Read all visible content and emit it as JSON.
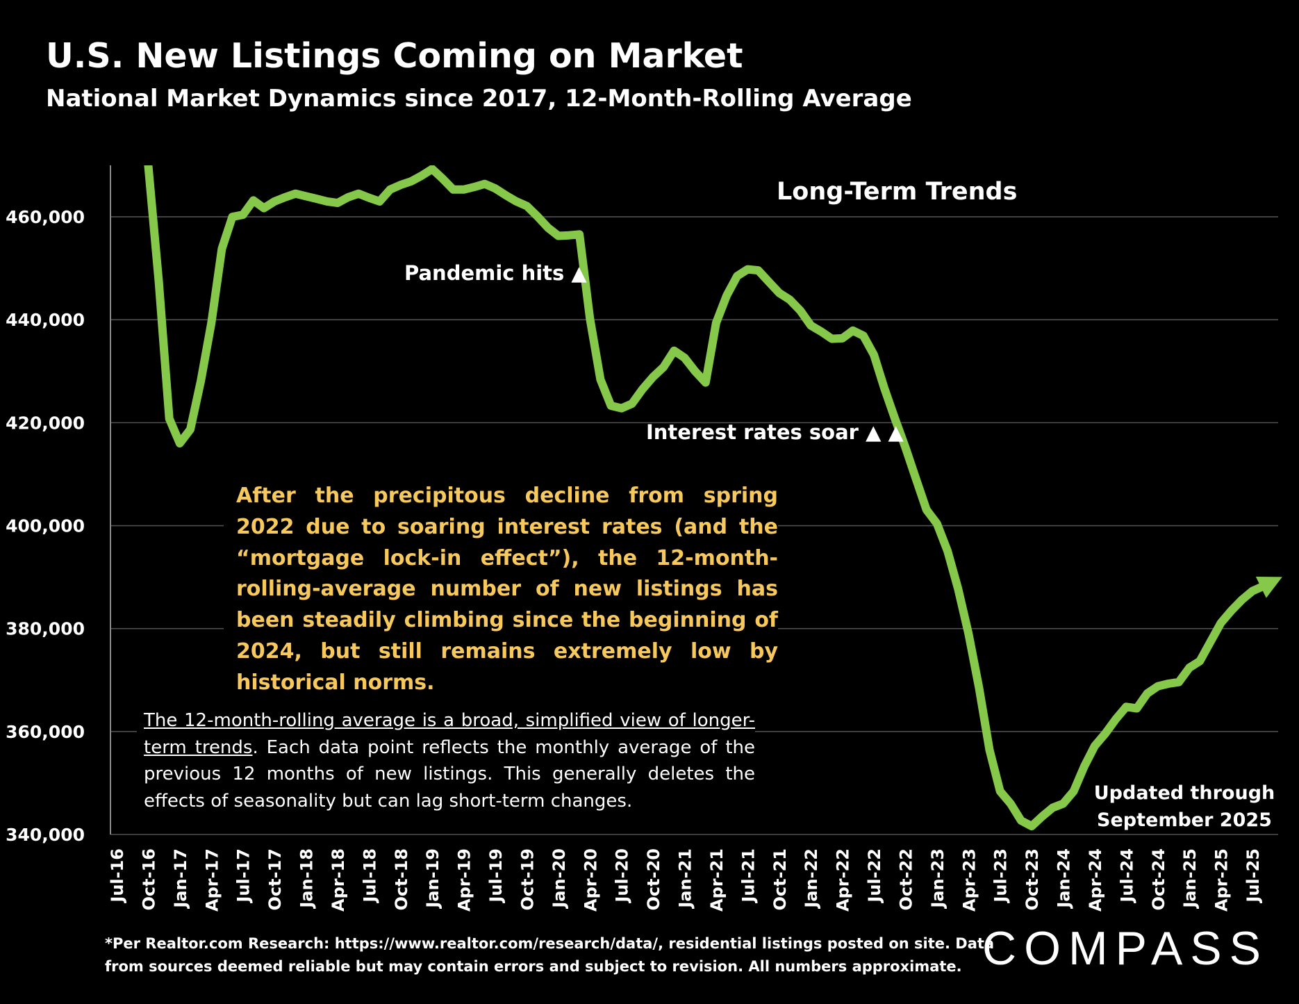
{
  "header": {
    "title": "U.S. New Listings Coming on Market",
    "subtitle": "National Market Dynamics since 2017, 12-Month-Rolling Average"
  },
  "annotations": {
    "long_term": "Long-Term Trends",
    "pandemic": "Pandemic hits ▲",
    "rates": "Interest rates soar ▲ ▲",
    "paragraph": "After the precipitous decline from spring 2022 due to soaring interest rates (and the “mortgage lock-in effect”), the 12-month-rolling-average number of new listings has been steadily climbing since the beginning of 2024, but still remains extremely low by historical norms.",
    "note_underlined": "The 12-month-rolling average is a broad, simplified view of longer-term trends",
    "note_rest": ". Each data point reflects the monthly average of the previous 12 months of new listings. This generally deletes the effects of seasonality but can lag short-term changes.",
    "updated_line1": "Updated through",
    "updated_line2": "September 2025"
  },
  "footer": {
    "line1": "*Per Realtor.com Research:  https://www.realtor.com/research/data/, residential listings posted on site. Data",
    "line2": "from sources deemed reliable but may contain errors and subject to revision. All numbers approximate.",
    "logo": "COMPASS"
  },
  "colors": {
    "line": "#86c94a",
    "paragraph": "#f7c95c",
    "background": "#000000",
    "grid": "#505050"
  },
  "chart_data": {
    "type": "line",
    "title": "U.S. New Listings Coming on Market",
    "ylim": [
      340000,
      470000
    ],
    "grid": true,
    "y_ticks": [
      340000,
      360000,
      380000,
      400000,
      420000,
      440000,
      460000
    ],
    "y_tick_labels": [
      "340,000",
      "360,000",
      "380,000",
      "400,000",
      "420,000",
      "440,000",
      "460,000"
    ],
    "x_tick_labels": [
      "Jul-16",
      "Oct-16",
      "Jan-17",
      "Apr-17",
      "Jul-17",
      "Oct-17",
      "Jan-18",
      "Apr-18",
      "Jul-18",
      "Oct-18",
      "Jan-19",
      "Apr-19",
      "Jul-19",
      "Oct-19",
      "Jan-20",
      "Apr-20",
      "Jul-20",
      "Oct-20",
      "Jan-21",
      "Apr-21",
      "Jul-21",
      "Oct-21",
      "Jan-22",
      "Apr-22",
      "Jul-22",
      "Oct-22",
      "Jan-23",
      "Apr-23",
      "Jul-23",
      "Oct-23",
      "Jan-24",
      "Apr-24",
      "Jul-24",
      "Oct-24",
      "Jan-25",
      "Apr-25",
      "Jul-25"
    ],
    "x": [
      "Oct-16",
      "Nov-16",
      "Dec-16",
      "Jan-17",
      "Feb-17",
      "Mar-17",
      "Apr-17",
      "May-17",
      "Jun-17",
      "Jul-17",
      "Aug-17",
      "Sep-17",
      "Oct-17",
      "Nov-17",
      "Dec-17",
      "Jan-18",
      "Feb-18",
      "Mar-18",
      "Apr-18",
      "May-18",
      "Jun-18",
      "Jul-18",
      "Aug-18",
      "Sep-18",
      "Oct-18",
      "Nov-18",
      "Dec-18",
      "Jan-19",
      "Feb-19",
      "Mar-19",
      "Apr-19",
      "May-19",
      "Jun-19",
      "Jul-19",
      "Aug-19",
      "Sep-19",
      "Oct-19",
      "Nov-19",
      "Dec-19",
      "Jan-20",
      "Feb-20",
      "Mar-20",
      "Apr-20",
      "May-20",
      "Jun-20",
      "Jul-20",
      "Aug-20",
      "Sep-20",
      "Oct-20",
      "Nov-20",
      "Dec-20",
      "Jan-21",
      "Feb-21",
      "Mar-21",
      "Apr-21",
      "May-21",
      "Jun-21",
      "Jul-21",
      "Aug-21",
      "Sep-21",
      "Oct-21",
      "Nov-21",
      "Dec-21",
      "Jan-22",
      "Feb-22",
      "Mar-22",
      "Apr-22",
      "May-22",
      "Jun-22",
      "Jul-22",
      "Aug-22",
      "Sep-22",
      "Oct-22",
      "Nov-22",
      "Dec-22",
      "Jan-23",
      "Feb-23",
      "Mar-23",
      "Apr-23",
      "May-23",
      "Jun-23",
      "Jul-23",
      "Aug-23",
      "Sep-23",
      "Oct-23",
      "Nov-23",
      "Dec-23",
      "Jan-24",
      "Feb-24",
      "Mar-24",
      "Apr-24",
      "May-24",
      "Jun-24",
      "Jul-24",
      "Aug-24",
      "Sep-24",
      "Oct-24",
      "Nov-24",
      "Dec-24",
      "Jan-25",
      "Feb-25",
      "Mar-25",
      "Apr-25",
      "May-25",
      "Jun-25",
      "Jul-25",
      "Aug-25",
      "Sep-25"
    ],
    "values": [
      470000,
      447400,
      420800,
      416000,
      418700,
      428100,
      439400,
      453800,
      460000,
      460400,
      463200,
      461700,
      463000,
      463800,
      464500,
      464000,
      463500,
      463000,
      462700,
      463800,
      464500,
      463700,
      463000,
      465300,
      466200,
      466900,
      468000,
      469300,
      467400,
      465300,
      465300,
      465800,
      466400,
      465500,
      464200,
      463000,
      462100,
      460100,
      457900,
      456300,
      456400,
      456600,
      440200,
      428400,
      423300,
      422800,
      423700,
      426500,
      428900,
      430800,
      434000,
      432600,
      430000,
      427800,
      439400,
      444700,
      448500,
      449800,
      449600,
      447400,
      445200,
      443900,
      441800,
      438900,
      437700,
      436300,
      436400,
      437900,
      436900,
      433200,
      426700,
      420800,
      415200,
      409100,
      403100,
      400400,
      395100,
      387800,
      379000,
      368500,
      356400,
      348400,
      346000,
      342700,
      341600,
      343500,
      345200,
      346000,
      348400,
      353200,
      357200,
      359600,
      362400,
      364800,
      364500,
      367400,
      368800,
      369300,
      369600,
      372400,
      373700,
      377400,
      381100,
      383500,
      385600,
      387300,
      388200,
      389200
    ]
  }
}
